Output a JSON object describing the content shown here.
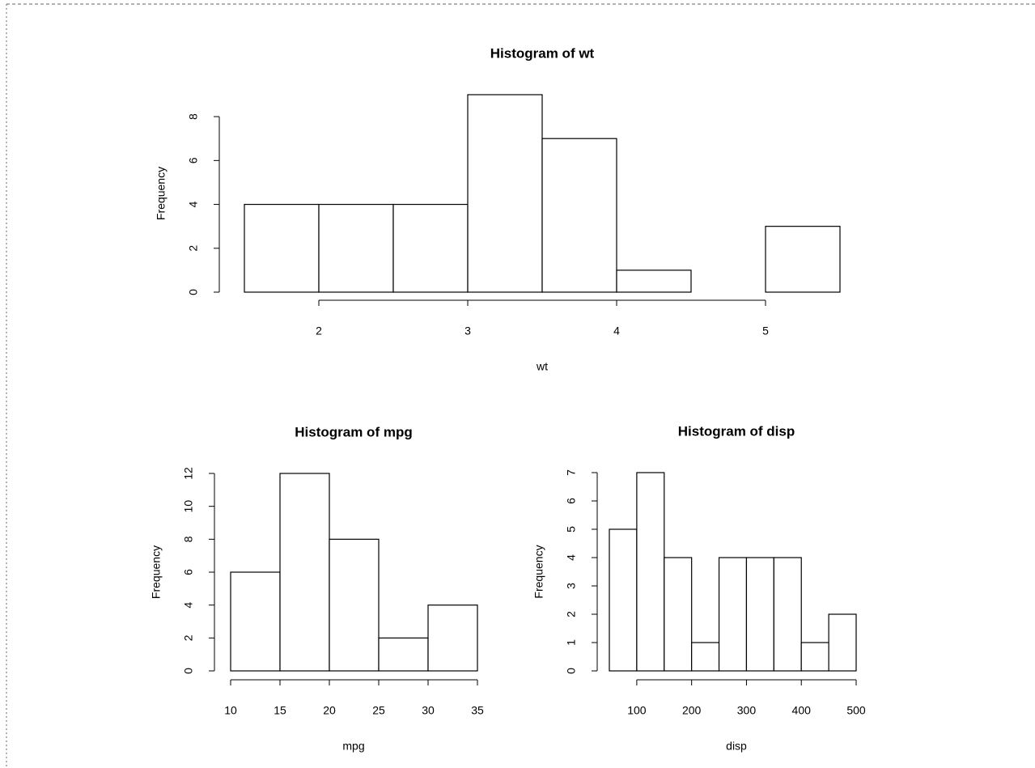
{
  "chart_data": [
    {
      "type": "histogram",
      "title": "Histogram of wt",
      "x_label": "wt",
      "y_label": "Frequency",
      "bins": [
        1.5,
        2,
        2.5,
        3,
        3.5,
        4,
        4.5,
        5,
        5.5
      ],
      "values": [
        4,
        4,
        4,
        9,
        7,
        1,
        0,
        3
      ],
      "xlim": [
        1.5,
        5.5
      ],
      "ylim": [
        0,
        9
      ],
      "xticks": [
        2,
        3,
        4,
        5
      ],
      "yticks": [
        0,
        2,
        4,
        6,
        8
      ]
    },
    {
      "type": "histogram",
      "title": "Histogram of mpg",
      "x_label": "mpg",
      "y_label": "Frequency",
      "bins": [
        10,
        15,
        20,
        25,
        30,
        35
      ],
      "values": [
        6,
        12,
        8,
        2,
        4
      ],
      "xlim": [
        10,
        35
      ],
      "ylim": [
        0,
        12
      ],
      "xticks": [
        10,
        15,
        20,
        25,
        30,
        35
      ],
      "yticks": [
        0,
        2,
        4,
        6,
        8,
        10,
        12
      ]
    },
    {
      "type": "histogram",
      "title": "Histogram of disp",
      "x_label": "disp",
      "y_label": "Frequency",
      "bins": [
        50,
        100,
        150,
        200,
        250,
        300,
        350,
        400,
        450,
        500
      ],
      "values": [
        5,
        7,
        4,
        1,
        4,
        4,
        4,
        1,
        2
      ],
      "xlim": [
        50,
        500
      ],
      "ylim": [
        0,
        7
      ],
      "xticks": [
        100,
        200,
        300,
        400,
        500
      ],
      "yticks": [
        0,
        1,
        2,
        3,
        4,
        5,
        6,
        7
      ]
    }
  ]
}
